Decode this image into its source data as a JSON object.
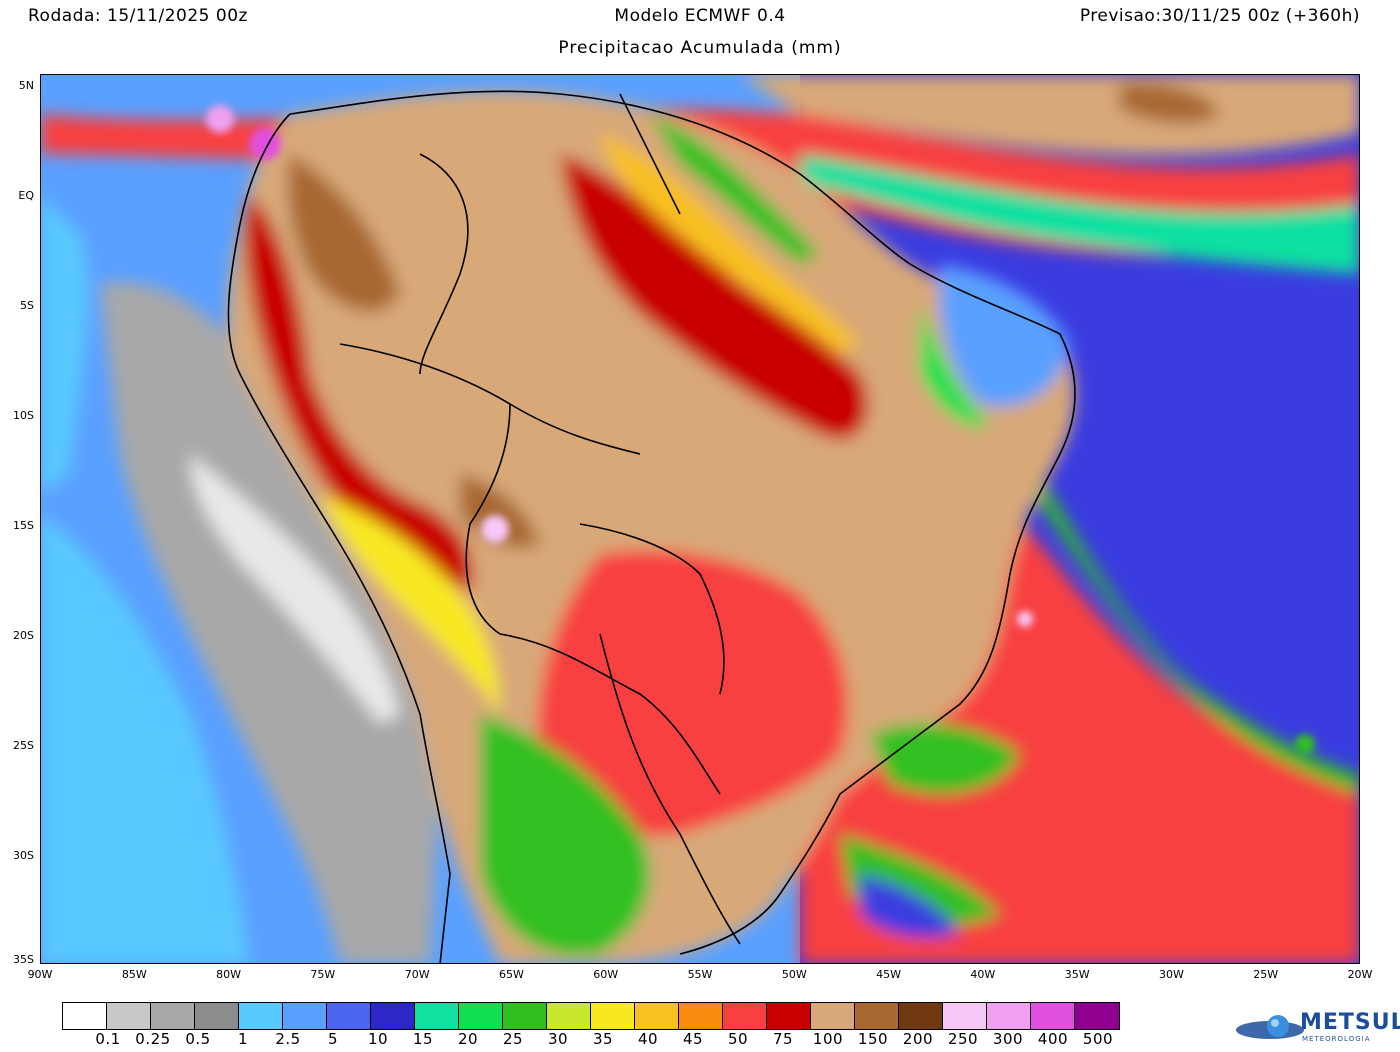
{
  "header": {
    "run_label": "Rodada: 15/11/2025 00z",
    "model_label": "Modelo ECMWF 0.4",
    "forecast_label": "Previsao:30/11/25 00z (+360h)",
    "subtitle": "Precipitacao Acumulada (mm)"
  },
  "axes": {
    "lat_labels": [
      "5N",
      "EQ",
      "5S",
      "10S",
      "15S",
      "20S",
      "25S",
      "30S",
      "35S"
    ],
    "lon_labels": [
      "90W",
      "85W",
      "80W",
      "75W",
      "70W",
      "65W",
      "60W",
      "55W",
      "50W",
      "45W",
      "40W",
      "35W",
      "30W",
      "25W",
      "20W"
    ]
  },
  "legend": {
    "colors": [
      "#ffffff",
      "#c8c8c8",
      "#a8a8a8",
      "#8c8c8c",
      "#58c8ff",
      "#5aa0ff",
      "#4a64f0",
      "#2c28c8",
      "#10e0a0",
      "#10e050",
      "#30c020",
      "#c8e830",
      "#f8e820",
      "#f8c020",
      "#f88c10",
      "#f84040",
      "#c80000",
      "#d8a878",
      "#a86830",
      "#703810",
      "#f8c8f8",
      "#f0a0f0",
      "#e050e0",
      "#900090"
    ],
    "ticks": [
      "0.1",
      "0.25",
      "0.5",
      "1",
      "2.5",
      "5",
      "10",
      "15",
      "20",
      "25",
      "30",
      "35",
      "40",
      "45",
      "50",
      "75",
      "100",
      "150",
      "200",
      "250",
      "300",
      "400",
      "500"
    ]
  },
  "logo": {
    "name": "METSUL",
    "tagline": "METEOROLOGIA"
  }
}
